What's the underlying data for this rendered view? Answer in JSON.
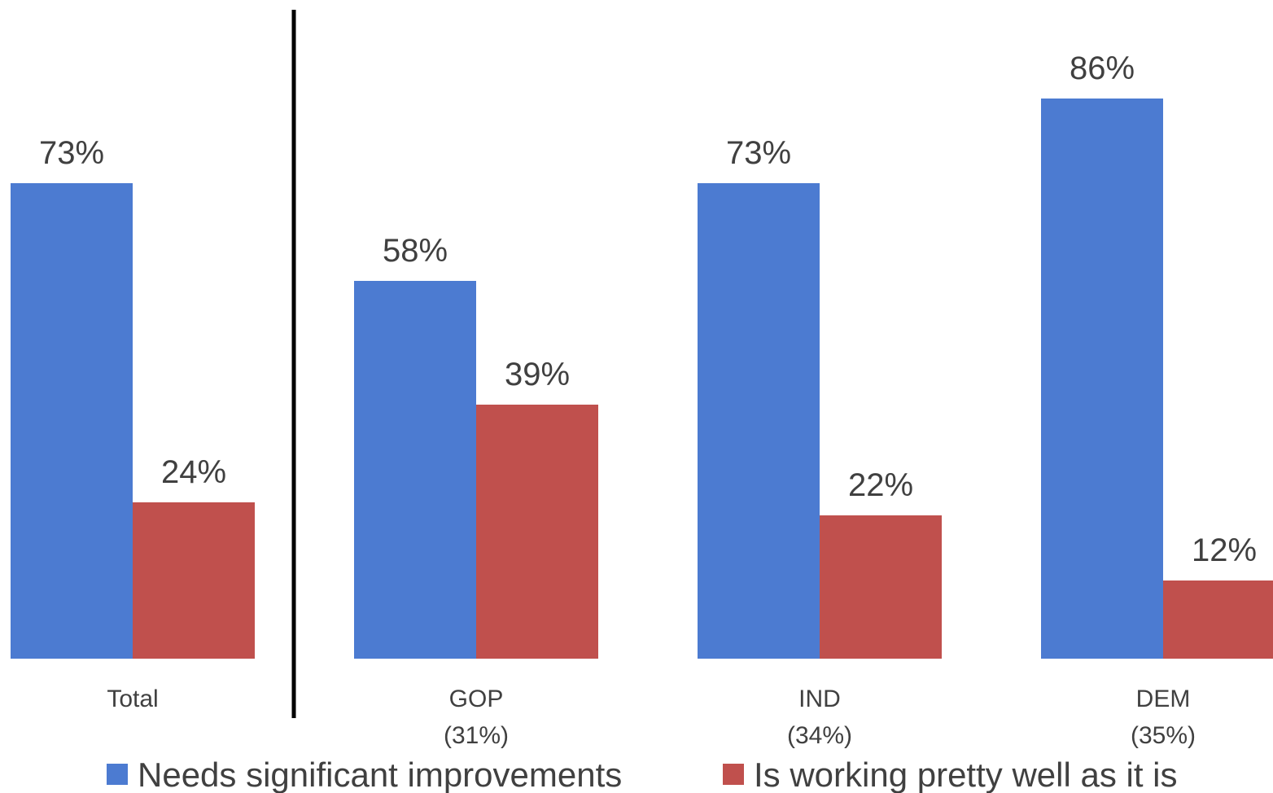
{
  "chart_data": {
    "type": "bar",
    "categories": [
      {
        "label": "Total",
        "sublabel": ""
      },
      {
        "label": "GOP",
        "sublabel": "(31%)"
      },
      {
        "label": "IND",
        "sublabel": "(34%)"
      },
      {
        "label": "DEM",
        "sublabel": "(35%)"
      }
    ],
    "series": [
      {
        "name": "Needs significant improvements",
        "color": "#4C7BD1",
        "values": [
          73,
          58,
          73,
          86
        ],
        "labels": [
          "73%",
          "58%",
          "73%",
          "86%"
        ]
      },
      {
        "name": "Is working pretty well as it is",
        "color": "#C0504D",
        "values": [
          24,
          39,
          22,
          12
        ],
        "labels": [
          "24%",
          "39%",
          "22%",
          "12%"
        ]
      }
    ],
    "ylim": [
      0,
      100
    ],
    "grid": false,
    "legend": "bottom",
    "divider_after_category": 0
  }
}
